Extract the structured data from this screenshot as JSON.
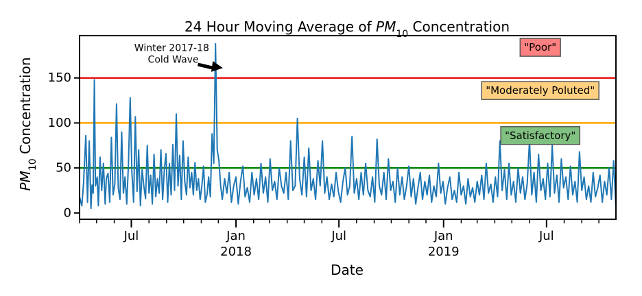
{
  "chart_data": {
    "type": "line",
    "title_prefix": "24 Hour Moving Average of ",
    "title_symbol": "PM",
    "title_subscript": "10",
    "title_suffix": " Concentration",
    "xlabel": "Date",
    "ylabel_symbol": "PM",
    "ylabel_subscript": "10",
    "ylabel_suffix": " Concentration",
    "xlim": [
      "2017-04-01",
      "2019-10-31"
    ],
    "ylim": [
      -7,
      197
    ],
    "yticks": [
      0,
      50,
      100,
      150
    ],
    "ytick_labels": [
      "0",
      "50",
      "100",
      "150"
    ],
    "xticks_major": [
      {
        "date": "2017-07-01",
        "label": "Jul",
        "sublabel": ""
      },
      {
        "date": "2018-01-01",
        "label": "Jan",
        "sublabel": "2018"
      },
      {
        "date": "2018-07-01",
        "label": "Jul",
        "sublabel": ""
      },
      {
        "date": "2019-01-01",
        "label": "Jan",
        "sublabel": "2019"
      },
      {
        "date": "2019-07-01",
        "label": "Jul",
        "sublabel": ""
      }
    ],
    "xticks_minor": [
      "2017-04-01",
      "2017-05-01",
      "2017-06-01",
      "2017-08-01",
      "2017-09-01",
      "2017-10-01",
      "2017-11-01",
      "2017-12-01",
      "2018-02-01",
      "2018-03-01",
      "2018-04-01",
      "2018-05-01",
      "2018-06-01",
      "2018-08-01",
      "2018-09-01",
      "2018-10-01",
      "2018-11-01",
      "2018-12-01",
      "2019-02-01",
      "2019-03-01",
      "2019-04-01",
      "2019-05-01",
      "2019-06-01",
      "2019-08-01",
      "2019-09-01",
      "2019-10-01"
    ],
    "thresholds": [
      {
        "value": 150,
        "color": "#e41a1c"
      },
      {
        "value": 100,
        "color": "#ffa500"
      },
      {
        "value": 50,
        "color": "#008000"
      }
    ],
    "legend_boxes": [
      {
        "text": "\"Poor\"",
        "fill": "#ff8080",
        "value_y": 184,
        "date_x": "2019-06-20"
      },
      {
        "text": "\"Moderately Poluted\"",
        "fill": "#ffd080",
        "value_y": 136,
        "date_x": "2019-06-20"
      },
      {
        "text": "\"Satisfactory\"",
        "fill": "#80c080",
        "value_y": 86,
        "date_x": "2019-06-20"
      }
    ],
    "annotation": {
      "text_line1": "Winter 2017-18",
      "text_line2": " Cold Wave",
      "text_date": "2017-09-10",
      "text_value": 180,
      "arrow_tail_date": "2017-10-26",
      "arrow_tail_value": 165,
      "arrow_head_date": "2017-12-09",
      "arrow_head_value": 161
    },
    "series": [
      {
        "color": "#1f77b4",
        "points": [
          [
            "2017-04-01",
            18
          ],
          [
            "2017-04-05",
            8
          ],
          [
            "2017-04-08",
            33
          ],
          [
            "2017-04-12",
            86
          ],
          [
            "2017-04-15",
            12
          ],
          [
            "2017-04-18",
            80
          ],
          [
            "2017-04-21",
            5
          ],
          [
            "2017-04-23",
            31
          ],
          [
            "2017-04-25",
            22
          ],
          [
            "2017-04-27",
            148
          ],
          [
            "2017-04-29",
            30
          ],
          [
            "2017-05-02",
            40
          ],
          [
            "2017-05-04",
            8
          ],
          [
            "2017-05-07",
            62
          ],
          [
            "2017-05-10",
            25
          ],
          [
            "2017-05-13",
            55
          ],
          [
            "2017-05-16",
            10
          ],
          [
            "2017-05-18",
            38
          ],
          [
            "2017-05-21",
            44
          ],
          [
            "2017-05-24",
            12
          ],
          [
            "2017-05-27",
            84
          ],
          [
            "2017-05-30",
            20
          ],
          [
            "2017-06-02",
            32
          ],
          [
            "2017-06-05",
            121
          ],
          [
            "2017-06-08",
            28
          ],
          [
            "2017-06-11",
            15
          ],
          [
            "2017-06-14",
            90
          ],
          [
            "2017-06-17",
            22
          ],
          [
            "2017-06-20",
            40
          ],
          [
            "2017-06-23",
            10
          ],
          [
            "2017-06-26",
            55
          ],
          [
            "2017-06-29",
            128
          ],
          [
            "2017-07-02",
            45
          ],
          [
            "2017-07-05",
            12
          ],
          [
            "2017-07-08",
            107
          ],
          [
            "2017-07-11",
            24
          ],
          [
            "2017-07-14",
            70
          ],
          [
            "2017-07-17",
            8
          ],
          [
            "2017-07-20",
            48
          ],
          [
            "2017-07-23",
            30
          ],
          [
            "2017-07-26",
            16
          ],
          [
            "2017-07-29",
            75
          ],
          [
            "2017-08-01",
            22
          ],
          [
            "2017-08-04",
            42
          ],
          [
            "2017-08-07",
            10
          ],
          [
            "2017-08-10",
            65
          ],
          [
            "2017-08-13",
            18
          ],
          [
            "2017-08-16",
            38
          ],
          [
            "2017-08-19",
            22
          ],
          [
            "2017-08-22",
            70
          ],
          [
            "2017-08-25",
            15
          ],
          [
            "2017-08-28",
            48
          ],
          [
            "2017-08-31",
            66
          ],
          [
            "2017-09-03",
            12
          ],
          [
            "2017-09-06",
            55
          ],
          [
            "2017-09-09",
            20
          ],
          [
            "2017-09-12",
            76
          ],
          [
            "2017-09-15",
            25
          ],
          [
            "2017-09-18",
            110
          ],
          [
            "2017-09-21",
            30
          ],
          [
            "2017-09-24",
            64
          ],
          [
            "2017-09-27",
            15
          ],
          [
            "2017-09-30",
            80
          ],
          [
            "2017-10-03",
            35
          ],
          [
            "2017-10-06",
            20
          ],
          [
            "2017-10-09",
            62
          ],
          [
            "2017-10-12",
            28
          ],
          [
            "2017-10-15",
            45
          ],
          [
            "2017-10-18",
            20
          ],
          [
            "2017-10-21",
            56
          ],
          [
            "2017-10-24",
            25
          ],
          [
            "2017-10-27",
            38
          ],
          [
            "2017-10-30",
            15
          ],
          [
            "2017-11-02",
            30
          ],
          [
            "2017-11-05",
            52
          ],
          [
            "2017-11-08",
            12
          ],
          [
            "2017-11-11",
            20
          ],
          [
            "2017-11-14",
            40
          ],
          [
            "2017-11-17",
            18
          ],
          [
            "2017-11-20",
            88
          ],
          [
            "2017-11-23",
            55
          ],
          [
            "2017-11-26",
            188
          ],
          [
            "2017-11-29",
            70
          ],
          [
            "2017-12-02",
            58
          ],
          [
            "2017-12-05",
            30
          ],
          [
            "2017-12-08",
            15
          ],
          [
            "2017-12-12",
            38
          ],
          [
            "2017-12-16",
            22
          ],
          [
            "2017-12-20",
            45
          ],
          [
            "2017-12-24",
            12
          ],
          [
            "2017-12-28",
            30
          ],
          [
            "2018-01-01",
            40
          ],
          [
            "2018-01-05",
            10
          ],
          [
            "2018-01-09",
            35
          ],
          [
            "2018-01-13",
            52
          ],
          [
            "2018-01-17",
            18
          ],
          [
            "2018-01-21",
            28
          ],
          [
            "2018-01-25",
            12
          ],
          [
            "2018-01-29",
            45
          ],
          [
            "2018-02-02",
            20
          ],
          [
            "2018-02-06",
            38
          ],
          [
            "2018-02-10",
            15
          ],
          [
            "2018-02-14",
            55
          ],
          [
            "2018-02-18",
            22
          ],
          [
            "2018-02-22",
            40
          ],
          [
            "2018-02-26",
            12
          ],
          [
            "2018-03-02",
            60
          ],
          [
            "2018-03-06",
            25
          ],
          [
            "2018-03-10",
            35
          ],
          [
            "2018-03-14",
            15
          ],
          [
            "2018-03-18",
            50
          ],
          [
            "2018-03-22",
            30
          ],
          [
            "2018-03-26",
            22
          ],
          [
            "2018-03-30",
            45
          ],
          [
            "2018-04-03",
            15
          ],
          [
            "2018-04-07",
            80
          ],
          [
            "2018-04-11",
            25
          ],
          [
            "2018-04-15",
            30
          ],
          [
            "2018-04-19",
            105
          ],
          [
            "2018-04-23",
            38
          ],
          [
            "2018-04-27",
            20
          ],
          [
            "2018-05-01",
            62
          ],
          [
            "2018-05-05",
            18
          ],
          [
            "2018-05-09",
            72
          ],
          [
            "2018-05-13",
            25
          ],
          [
            "2018-05-17",
            38
          ],
          [
            "2018-05-21",
            15
          ],
          [
            "2018-05-25",
            58
          ],
          [
            "2018-05-29",
            30
          ],
          [
            "2018-06-02",
            80
          ],
          [
            "2018-06-06",
            22
          ],
          [
            "2018-06-10",
            40
          ],
          [
            "2018-06-14",
            15
          ],
          [
            "2018-06-18",
            32
          ],
          [
            "2018-06-22",
            18
          ],
          [
            "2018-06-26",
            45
          ],
          [
            "2018-06-30",
            24
          ],
          [
            "2018-07-04",
            12
          ],
          [
            "2018-07-08",
            35
          ],
          [
            "2018-07-12",
            50
          ],
          [
            "2018-07-16",
            20
          ],
          [
            "2018-07-20",
            30
          ],
          [
            "2018-07-24",
            85
          ],
          [
            "2018-07-28",
            22
          ],
          [
            "2018-08-01",
            38
          ],
          [
            "2018-08-05",
            15
          ],
          [
            "2018-08-09",
            45
          ],
          [
            "2018-08-13",
            20
          ],
          [
            "2018-08-17",
            55
          ],
          [
            "2018-08-21",
            25
          ],
          [
            "2018-08-25",
            18
          ],
          [
            "2018-08-29",
            40
          ],
          [
            "2018-09-02",
            12
          ],
          [
            "2018-09-06",
            82
          ],
          [
            "2018-09-10",
            30
          ],
          [
            "2018-09-14",
            20
          ],
          [
            "2018-09-18",
            45
          ],
          [
            "2018-09-22",
            15
          ],
          [
            "2018-09-26",
            60
          ],
          [
            "2018-09-30",
            25
          ],
          [
            "2018-10-04",
            35
          ],
          [
            "2018-10-08",
            12
          ],
          [
            "2018-10-12",
            50
          ],
          [
            "2018-10-16",
            20
          ],
          [
            "2018-10-20",
            40
          ],
          [
            "2018-10-24",
            15
          ],
          [
            "2018-10-28",
            30
          ],
          [
            "2018-11-01",
            52
          ],
          [
            "2018-11-05",
            18
          ],
          [
            "2018-11-09",
            38
          ],
          [
            "2018-11-13",
            10
          ],
          [
            "2018-11-17",
            28
          ],
          [
            "2018-11-21",
            45
          ],
          [
            "2018-11-25",
            15
          ],
          [
            "2018-11-29",
            35
          ],
          [
            "2018-12-03",
            20
          ],
          [
            "2018-12-07",
            42
          ],
          [
            "2018-12-11",
            12
          ],
          [
            "2018-12-15",
            30
          ],
          [
            "2018-12-19",
            18
          ],
          [
            "2018-12-23",
            55
          ],
          [
            "2018-12-27",
            22
          ],
          [
            "2018-12-31",
            35
          ],
          [
            "2019-01-04",
            10
          ],
          [
            "2019-01-08",
            28
          ],
          [
            "2019-01-12",
            40
          ],
          [
            "2019-01-16",
            15
          ],
          [
            "2019-01-20",
            25
          ],
          [
            "2019-01-24",
            12
          ],
          [
            "2019-01-28",
            45
          ],
          [
            "2019-02-01",
            20
          ],
          [
            "2019-02-05",
            30
          ],
          [
            "2019-02-09",
            10
          ],
          [
            "2019-02-13",
            38
          ],
          [
            "2019-02-17",
            18
          ],
          [
            "2019-02-21",
            28
          ],
          [
            "2019-02-25",
            12
          ],
          [
            "2019-03-01",
            35
          ],
          [
            "2019-03-05",
            20
          ],
          [
            "2019-03-09",
            42
          ],
          [
            "2019-03-13",
            15
          ],
          [
            "2019-03-17",
            55
          ],
          [
            "2019-03-21",
            22
          ],
          [
            "2019-03-25",
            32
          ],
          [
            "2019-03-29",
            12
          ],
          [
            "2019-04-02",
            40
          ],
          [
            "2019-04-06",
            18
          ],
          [
            "2019-04-10",
            80
          ],
          [
            "2019-04-14",
            25
          ],
          [
            "2019-04-18",
            48
          ],
          [
            "2019-04-22",
            15
          ],
          [
            "2019-04-26",
            55
          ],
          [
            "2019-04-30",
            20
          ],
          [
            "2019-05-04",
            35
          ],
          [
            "2019-05-08",
            12
          ],
          [
            "2019-05-12",
            50
          ],
          [
            "2019-05-16",
            22
          ],
          [
            "2019-05-20",
            40
          ],
          [
            "2019-05-24",
            15
          ],
          [
            "2019-05-28",
            32
          ],
          [
            "2019-06-01",
            80
          ],
          [
            "2019-06-05",
            20
          ],
          [
            "2019-06-09",
            45
          ],
          [
            "2019-06-13",
            12
          ],
          [
            "2019-06-17",
            65
          ],
          [
            "2019-06-21",
            25
          ],
          [
            "2019-06-25",
            38
          ],
          [
            "2019-06-29",
            15
          ],
          [
            "2019-07-03",
            55
          ],
          [
            "2019-07-07",
            18
          ],
          [
            "2019-07-11",
            75
          ],
          [
            "2019-07-15",
            22
          ],
          [
            "2019-07-19",
            42
          ],
          [
            "2019-07-23",
            12
          ],
          [
            "2019-07-27",
            60
          ],
          [
            "2019-07-31",
            28
          ],
          [
            "2019-08-04",
            40
          ],
          [
            "2019-08-08",
            15
          ],
          [
            "2019-08-12",
            52
          ],
          [
            "2019-08-16",
            20
          ],
          [
            "2019-08-20",
            35
          ],
          [
            "2019-08-24",
            12
          ],
          [
            "2019-08-28",
            68
          ],
          [
            "2019-09-01",
            25
          ],
          [
            "2019-09-05",
            40
          ],
          [
            "2019-09-09",
            15
          ],
          [
            "2019-09-13",
            30
          ],
          [
            "2019-09-17",
            12
          ],
          [
            "2019-09-21",
            45
          ],
          [
            "2019-09-25",
            18
          ],
          [
            "2019-09-29",
            28
          ],
          [
            "2019-10-03",
            42
          ],
          [
            "2019-10-07",
            12
          ],
          [
            "2019-10-11",
            35
          ],
          [
            "2019-10-15",
            20
          ],
          [
            "2019-10-19",
            50
          ],
          [
            "2019-10-23",
            15
          ],
          [
            "2019-10-27",
            58
          ],
          [
            "2019-10-31",
            5
          ]
        ]
      }
    ]
  }
}
